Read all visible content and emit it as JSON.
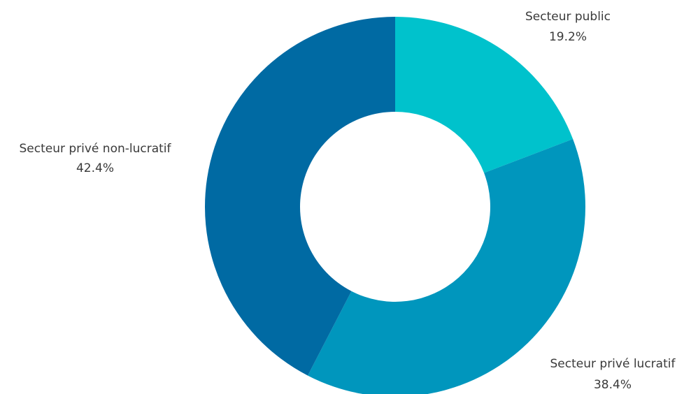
{
  "chart_data": {
    "type": "pie",
    "variant": "donut",
    "slices": [
      {
        "label": "Secteur public",
        "value": 19.2,
        "value_label": "19.2%",
        "color": "#00c2cc"
      },
      {
        "label": "Secteur privé lucratif",
        "value": 38.4,
        "value_label": "38.4%",
        "color": "#0096bd"
      },
      {
        "label": "Secteur privé non-lucratif",
        "value": 42.4,
        "value_label": "42.4%",
        "color": "#006aa3"
      }
    ],
    "start_angle": "12 o'clock",
    "direction": "clockwise",
    "legend": "none"
  }
}
